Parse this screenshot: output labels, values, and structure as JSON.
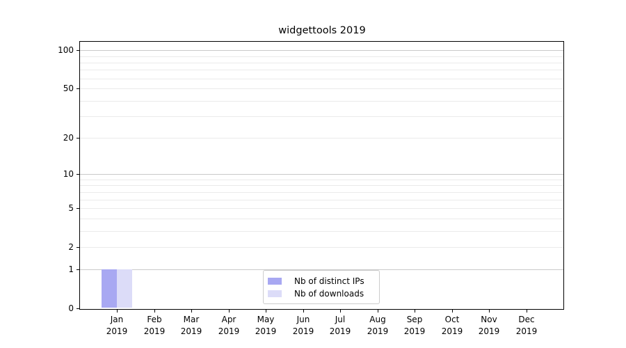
{
  "title": "widgettools 2019",
  "chart_data": {
    "type": "bar",
    "title": "widgettools 2019",
    "x_months": [
      "Jan",
      "Feb",
      "Mar",
      "Apr",
      "May",
      "Jun",
      "Jul",
      "Aug",
      "Sep",
      "Oct",
      "Nov",
      "Dec"
    ],
    "x_year": "2019",
    "categories": [
      "Jan 2019",
      "Feb 2019",
      "Mar 2019",
      "Apr 2019",
      "May 2019",
      "Jun 2019",
      "Jul 2019",
      "Aug 2019",
      "Sep 2019",
      "Oct 2019",
      "Nov 2019",
      "Dec 2019"
    ],
    "series": [
      {
        "name": "Nb of distinct IPs",
        "color": "#a8a8f2",
        "values": [
          1,
          0,
          0,
          0,
          0,
          0,
          0,
          0,
          0,
          0,
          0,
          0
        ]
      },
      {
        "name": "Nb of downloads",
        "color": "#dcdcf8",
        "values": [
          1,
          0,
          0,
          0,
          0,
          0,
          0,
          0,
          0,
          0,
          0,
          0
        ]
      }
    ],
    "yscale": "log1p",
    "ylim": [
      0,
      115
    ],
    "yticks": [
      0,
      1,
      2,
      5,
      10,
      20,
      50,
      100
    ],
    "ytick_labels": [
      "0",
      "1",
      "2",
      "5",
      "10",
      "20",
      "50",
      "100"
    ],
    "major_gridlines": [
      1,
      10,
      100
    ],
    "minor_gridlines": [
      2,
      3,
      4,
      5,
      6,
      7,
      8,
      9,
      20,
      30,
      40,
      50,
      60,
      70,
      80,
      90
    ],
    "grid": "horizontal",
    "legend_position": "lower center",
    "colors": {
      "bar_distinct_ips": "#a8a8f2",
      "bar_downloads": "#dcdcf8",
      "grid_major": "#c9c9c9",
      "grid_minor": "#eaeaea",
      "axis": "#000000",
      "legend_border": "#cccccc"
    }
  },
  "legend": {
    "entries": [
      "Nb of distinct IPs",
      "Nb of downloads"
    ]
  }
}
